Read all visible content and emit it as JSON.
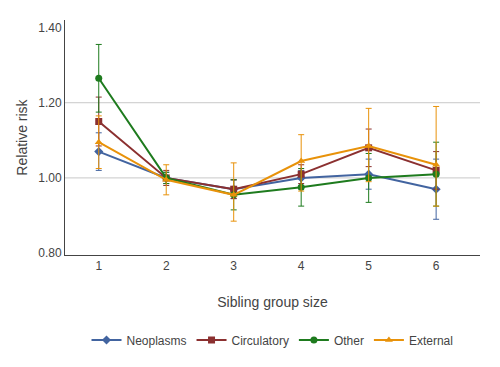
{
  "chart_data": {
    "type": "line",
    "xlabel": "Sibling group size",
    "ylabel": "Relative risk",
    "x": [
      1,
      2,
      3,
      4,
      5,
      6
    ],
    "series": [
      {
        "name": "Neoplasms",
        "color": "#4264A0",
        "marker": "diamond",
        "values": [
          1.07,
          1.0,
          0.97,
          1.0,
          1.01,
          0.97
        ],
        "error_minus": [
          0.05,
          0.015,
          0.025,
          0.02,
          0.04,
          0.08
        ],
        "error_plus": [
          0.05,
          0.015,
          0.025,
          0.02,
          0.04,
          0.08
        ]
      },
      {
        "name": "Circulatory",
        "color": "#8B3030",
        "marker": "square",
        "values": [
          1.15,
          1.0,
          0.97,
          1.01,
          1.08,
          1.02
        ],
        "error_minus": [
          0.065,
          0.02,
          0.025,
          0.025,
          0.05,
          0.05
        ],
        "error_plus": [
          0.065,
          0.02,
          0.025,
          0.025,
          0.05,
          0.05
        ]
      },
      {
        "name": "Other",
        "color": "#1E7B1E",
        "marker": "circle",
        "values": [
          1.265,
          1.0,
          0.955,
          0.975,
          1.0,
          1.01
        ],
        "error_minus": [
          0.09,
          0.015,
          0.04,
          0.05,
          0.065,
          0.085
        ],
        "error_plus": [
          0.09,
          0.015,
          0.04,
          0.05,
          0.065,
          0.085
        ]
      },
      {
        "name": "External",
        "color": "#E8920A",
        "marker": "triangle-up",
        "values": [
          1.095,
          0.995,
          0.955,
          1.045,
          1.085,
          1.035
        ],
        "error_minus": [
          0.07,
          0.04,
          0.07,
          0.08,
          0.095,
          0.11
        ],
        "error_plus": [
          0.07,
          0.04,
          0.085,
          0.07,
          0.1,
          0.155
        ]
      }
    ],
    "xlim": [
      0.5,
      6.65
    ],
    "ylim": [
      0.795,
      1.42
    ],
    "xticks": [
      1,
      2,
      3,
      4,
      5,
      6
    ],
    "yticks": [
      {
        "value": 0.8,
        "label": "0.80"
      },
      {
        "value": 1.0,
        "label": "1.00"
      },
      {
        "value": 1.2,
        "label": "1.20"
      },
      {
        "value": 1.4,
        "label": "1.40"
      }
    ],
    "hlines": [
      1.2,
      1.0
    ],
    "grid": false,
    "legend": "bottom"
  }
}
